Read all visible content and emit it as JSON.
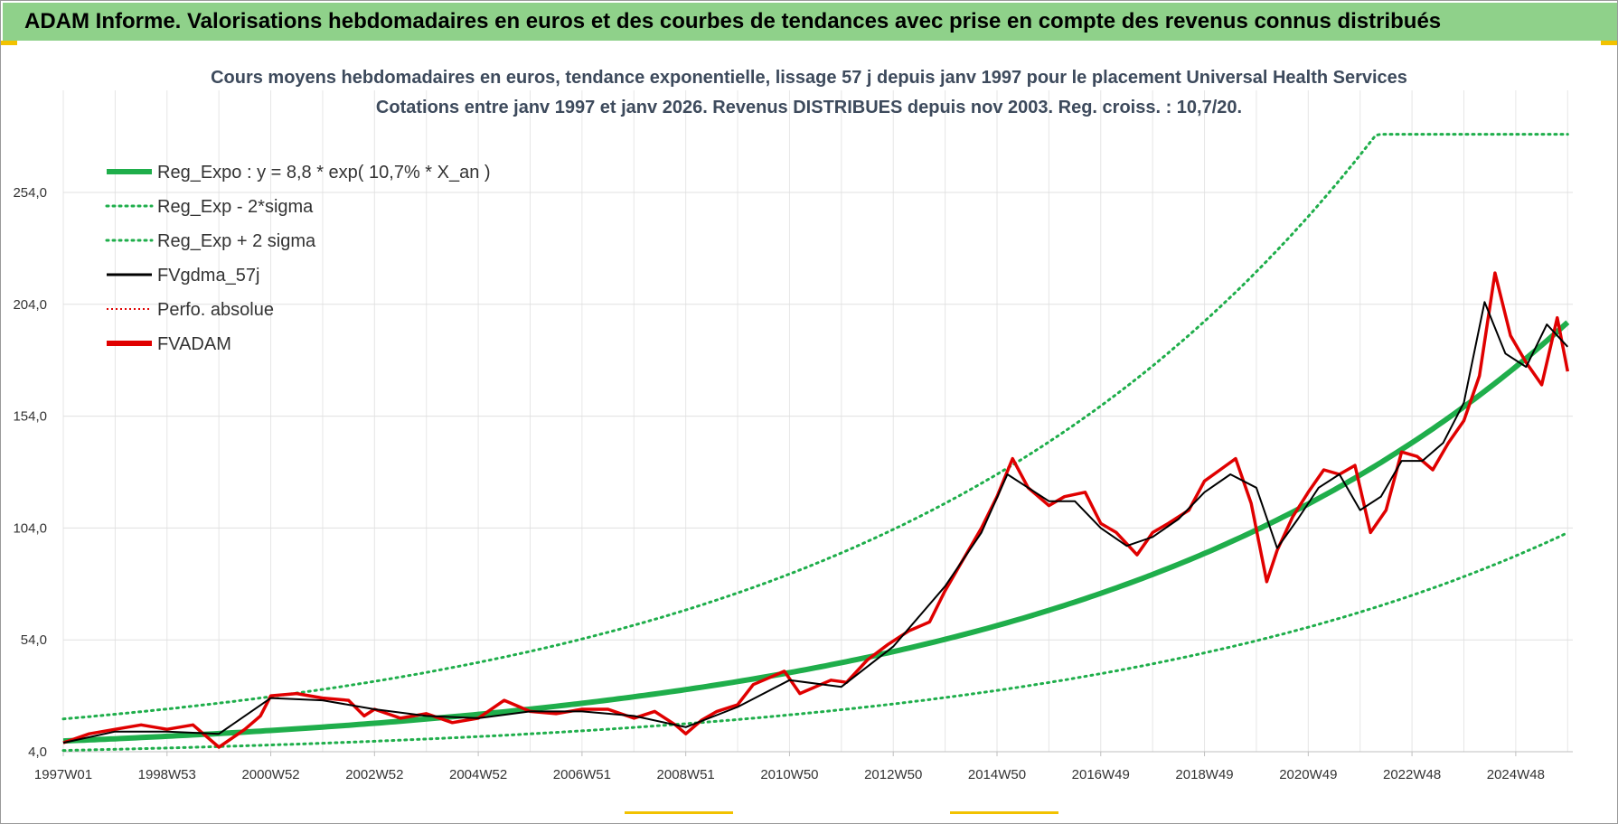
{
  "page": {
    "banner_title": "ADAM Informe. Valorisations hebdomadaires en euros et des courbes de tendances avec prise en compte des revenus connus distribués"
  },
  "chart_data": {
    "type": "line",
    "title": "Cours moyens hebdomadaires en euros, tendance exponentielle, lissage 57 j depuis janv 1997  pour le placement Universal Health Services",
    "subtitle": "Cotations entre janv 1997 et janv 2026. Revenus DISTRIBUES depuis nov 2003.  Reg. croiss. : 10,7/20.",
    "xlabel": "",
    "ylabel": "",
    "ylim": [
      4.0,
      280.0
    ],
    "xlim": [
      1997.0,
      2026.1
    ],
    "grid": true,
    "legend_position": "top-left",
    "x_tick_labels": [
      "1997W01",
      "1998W53",
      "2000W52",
      "2002W52",
      "2004W52",
      "2006W51",
      "2008W51",
      "2010W50",
      "2012W50",
      "2014W50",
      "2016W49",
      "2018W49",
      "2020W49",
      "2022W48",
      "2024W48"
    ],
    "x_tick_years": [
      1997.0,
      1999.0,
      2001.0,
      2003.0,
      2005.0,
      2007.0,
      2009.0,
      2011.0,
      2013.0,
      2015.0,
      2017.0,
      2019.0,
      2021.0,
      2023.0,
      2025.0
    ],
    "y_ticks": [
      4.0,
      54.0,
      104.0,
      154.0,
      204.0,
      254.0
    ],
    "y_tick_labels": [
      "4,0",
      "54,0",
      "104,0",
      "154,0",
      "204,0",
      "254,0"
    ],
    "regression": {
      "a": 8.8,
      "rate": 0.107,
      "upper_factor": 2.12,
      "lower_factor": 0.52,
      "cap": 280
    },
    "legend": [
      {
        "label": "Reg_Expo : y = 8,8 * exp( 10,7% *  X_an )",
        "color": "#1fae4b",
        "style": "solid-thick"
      },
      {
        "label": "Reg_Exp - 2*sigma",
        "color": "#1fae4b",
        "style": "dotted"
      },
      {
        "label": "Reg_Exp + 2 sigma",
        "color": "#1fae4b",
        "style": "dotted"
      },
      {
        "label": "FVgdma_57j",
        "color": "#000000",
        "style": "solid"
      },
      {
        "label": "Perfo. absolue",
        "color": "#e00000",
        "style": "dotted-thin"
      },
      {
        "label": "FVADAM",
        "color": "#e00000",
        "style": "solid-thick"
      }
    ],
    "series": [
      {
        "name": "FVADAM",
        "color": "#e00000",
        "x": [
          1997.0,
          1997.5,
          1998.0,
          1998.5,
          1999.0,
          1999.5,
          2000.0,
          2000.5,
          2000.8,
          2001.0,
          2001.5,
          2002.0,
          2002.5,
          2002.8,
          2003.0,
          2003.5,
          2004.0,
          2004.5,
          2005.0,
          2005.5,
          2006.0,
          2006.5,
          2007.0,
          2007.5,
          2008.0,
          2008.4,
          2008.8,
          2009.0,
          2009.3,
          2009.6,
          2010.0,
          2010.3,
          2010.6,
          2010.9,
          2011.2,
          2011.5,
          2011.8,
          2012.1,
          2012.5,
          2012.9,
          2013.3,
          2013.7,
          2014.0,
          2014.3,
          2014.7,
          2015.0,
          2015.3,
          2015.6,
          2016.0,
          2016.3,
          2016.7,
          2017.0,
          2017.3,
          2017.7,
          2018.0,
          2018.3,
          2018.7,
          2019.0,
          2019.3,
          2019.6,
          2019.9,
          2020.2,
          2020.4,
          2020.7,
          2021.0,
          2021.3,
          2021.6,
          2021.9,
          2022.2,
          2022.5,
          2022.8,
          2023.1,
          2023.4,
          2023.7,
          2024.0,
          2024.3,
          2024.6,
          2024.9,
          2025.2,
          2025.5,
          2025.8,
          2026.0
        ],
        "y": [
          8,
          12,
          14,
          16,
          14,
          16,
          6,
          14,
          20,
          29,
          30,
          28,
          27,
          20,
          23,
          19,
          21,
          17,
          19,
          27,
          22,
          21,
          23,
          23,
          19,
          22,
          16,
          12,
          18,
          22,
          25,
          34,
          37,
          40,
          30,
          33,
          36,
          35,
          45,
          52,
          58,
          62,
          76,
          88,
          104,
          118,
          135,
          122,
          114,
          118,
          120,
          106,
          102,
          92,
          102,
          106,
          112,
          125,
          130,
          135,
          115,
          80,
          94,
          109,
          120,
          130,
          128,
          132,
          102,
          112,
          138,
          136,
          130,
          142,
          152,
          172,
          218,
          190,
          178,
          168,
          198,
          174
        ],
        "show_in_legend": true
      },
      {
        "name": "FVgdma_57j",
        "color": "#000000",
        "x": [
          1997.0,
          1998.0,
          1999.0,
          2000.0,
          2001.0,
          2002.0,
          2003.0,
          2004.0,
          2005.0,
          2006.0,
          2007.0,
          2008.0,
          2009.0,
          2010.0,
          2011.0,
          2012.0,
          2013.0,
          2014.0,
          2014.7,
          2015.2,
          2015.6,
          2016.0,
          2016.5,
          2017.0,
          2017.5,
          2018.0,
          2018.5,
          2019.0,
          2019.5,
          2020.0,
          2020.4,
          2020.8,
          2021.2,
          2021.6,
          2022.0,
          2022.4,
          2022.8,
          2023.2,
          2023.6,
          2024.0,
          2024.4,
          2024.8,
          2025.2,
          2025.6,
          2026.0
        ],
        "y": [
          8,
          13,
          13,
          12,
          28,
          27,
          23,
          20,
          19,
          22,
          22,
          20,
          15,
          24,
          36,
          33,
          51,
          78,
          102,
          128,
          122,
          116,
          116,
          104,
          96,
          100,
          108,
          120,
          128,
          122,
          95,
          108,
          122,
          128,
          112,
          118,
          134,
          134,
          142,
          160,
          205,
          182,
          176,
          195,
          185
        ],
        "show_in_legend": true
      }
    ]
  }
}
